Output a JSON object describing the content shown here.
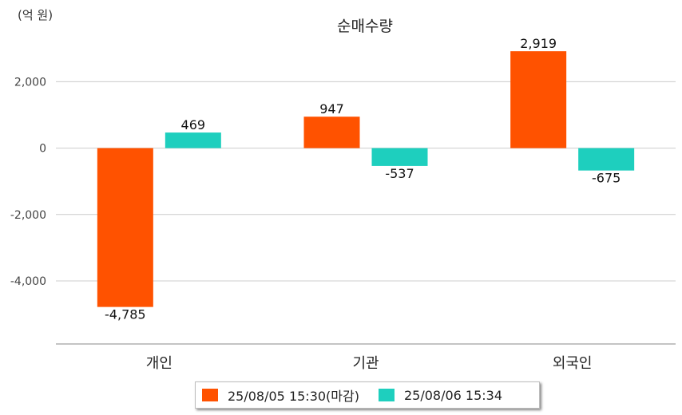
{
  "unit_label": "(억 원)",
  "chart_data": {
    "type": "bar",
    "title": "순매수량",
    "categories": [
      "개인",
      "기관",
      "외국인"
    ],
    "series": [
      {
        "name": "25/08/05 15:30(마감)",
        "color": "#FF5200",
        "values": [
          -4785,
          947,
          2919
        ],
        "labels": [
          "-4,785",
          "947",
          "2,919"
        ]
      },
      {
        "name": "25/08/06 15:34",
        "color": "#1ECFBE",
        "values": [
          469,
          -537,
          -675
        ],
        "labels": [
          "469",
          "-537",
          "-675"
        ]
      }
    ],
    "yticks": [
      2000,
      0,
      -2000,
      -4000
    ],
    "ytick_labels": [
      "2,000",
      "0",
      "-2,000",
      "-4,000"
    ],
    "ylim": [
      -5900,
      3500
    ],
    "grid": true,
    "legend": "bottom"
  }
}
